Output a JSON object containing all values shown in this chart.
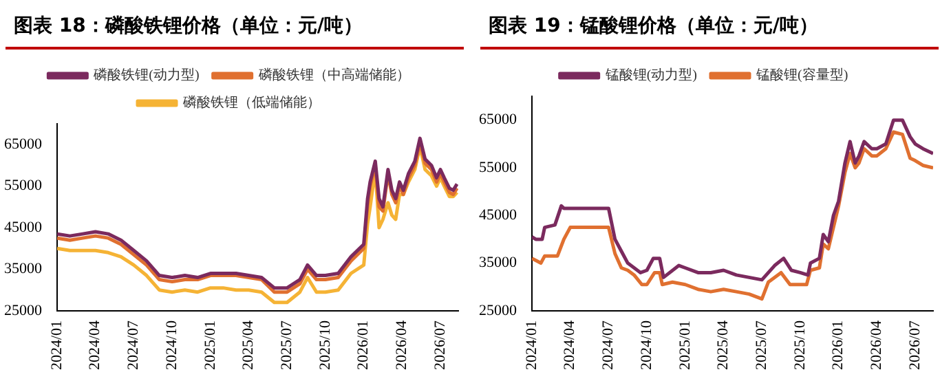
{
  "chart_data": [
    {
      "type": "line",
      "title": "图表 18：磷酸铁锂价格（单位：元/吨）",
      "legend": "top",
      "x": [
        "2024-01-01",
        "2024-02-01",
        "2024-03-01",
        "2024-04-01",
        "2024-05-01",
        "2024-06-01",
        "2024-07-01",
        "2024-08-01",
        "2024-09-01",
        "2024-10-01",
        "2024-11-01",
        "2024-12-01",
        "2025-01-01",
        "2025-02-01",
        "2025-03-01",
        "2025-04-01",
        "2025-05-01",
        "2025-06-01",
        "2025-07-01",
        "2025-08-01",
        "2025-08-19",
        "2025-09-10",
        "2025-10-01",
        "2025-11-01",
        "2025-12-01",
        "2026-01-01",
        "2026-01-10",
        "2026-01-16",
        "2026-01-28",
        "2026-02-07",
        "2026-02-16",
        "2026-02-28",
        "2026-03-07",
        "2026-03-16",
        "2026-03-25",
        "2026-04-04",
        "2026-04-16",
        "2026-05-01",
        "2026-05-13",
        "2026-05-25",
        "2026-06-10",
        "2026-06-22",
        "2026-07-01",
        "2026-07-10",
        "2026-07-22",
        "2026-08-01",
        "2026-08-10"
      ],
      "series": [
        {
          "name": "磷酸铁锂(动力型)",
          "color": "#7b2a5e",
          "values": [
            43500,
            43000,
            43500,
            44000,
            43500,
            42000,
            39500,
            37000,
            33500,
            33000,
            33500,
            33000,
            34000,
            34000,
            34000,
            33500,
            33000,
            30500,
            30500,
            32500,
            36000,
            33500,
            33500,
            34000,
            38000,
            41000,
            52000,
            56000,
            61000,
            52000,
            50000,
            59000,
            54000,
            52000,
            56000,
            54000,
            58000,
            61000,
            66500,
            61500,
            60000,
            57000,
            59000,
            57000,
            54500,
            54000,
            55500
          ]
        },
        {
          "name": "磷酸铁锂（中高端储能）",
          "color": "#e07030",
          "values": [
            42500,
            42000,
            42500,
            43000,
            42500,
            41000,
            38500,
            36000,
            32500,
            32000,
            32500,
            32500,
            33500,
            33500,
            33500,
            33000,
            32500,
            29500,
            29500,
            31500,
            35000,
            32500,
            32500,
            33000,
            37000,
            40000,
            50500,
            55000,
            60000,
            50000,
            49000,
            58000,
            53000,
            51000,
            55000,
            53000,
            57000,
            60000,
            65500,
            60500,
            59000,
            56000,
            58000,
            56000,
            53500,
            53000,
            54500
          ]
        },
        {
          "name": "磷酸铁锂（低端储能）",
          "color": "#f5b335",
          "values": [
            40000,
            39500,
            39500,
            39500,
            39000,
            38000,
            36000,
            33500,
            30000,
            29500,
            30000,
            29500,
            30500,
            30500,
            30000,
            30000,
            29500,
            27000,
            27000,
            29500,
            33000,
            29500,
            29500,
            30000,
            34000,
            36000,
            46000,
            50000,
            59000,
            45000,
            47000,
            51000,
            48000,
            47000,
            53000,
            53000,
            56000,
            59000,
            64500,
            59000,
            57500,
            55000,
            57000,
            55000,
            52500,
            52500,
            53500
          ]
        }
      ],
      "xlim": [
        "2024-01-01",
        "2026-08-13"
      ],
      "xticks": [
        {
          "value": "2024-01",
          "label": "2024/01"
        },
        {
          "value": "2024-04",
          "label": "2024/04"
        },
        {
          "value": "2024-07",
          "label": "2024/07"
        },
        {
          "value": "2024-10",
          "label": "2024/10"
        },
        {
          "value": "2025-01",
          "label": "2025/01"
        },
        {
          "value": "2025-04",
          "label": "2025/04"
        },
        {
          "value": "2025-07",
          "label": "2025/07"
        },
        {
          "value": "2025-10",
          "label": "2025/10"
        },
        {
          "value": "2026-01",
          "label": "2026/01"
        },
        {
          "value": "2026-04",
          "label": "2026/04"
        },
        {
          "value": "2026-07",
          "label": "2026/07"
        }
      ],
      "ylim": [
        25000,
        70000
      ],
      "yticks": [
        25000,
        35000,
        45000,
        55000,
        65000
      ]
    },
    {
      "type": "line",
      "title": "图表 19：锰酸锂价格（单位：元/吨）",
      "legend": "top",
      "series": [
        {
          "name": "锰酸锂(动力型)",
          "color": "#7b2a5e",
          "x": [
            "2024-01-01",
            "2024-01-10",
            "2024-01-25",
            "2024-02-01",
            "2024-02-25",
            "2024-03-10",
            "2024-03-16",
            "2024-07-01",
            "2024-07-16",
            "2024-08-01",
            "2024-08-16",
            "2024-09-01",
            "2024-09-16",
            "2024-10-01",
            "2024-10-16",
            "2024-11-01",
            "2024-11-10",
            "2024-12-16",
            "2025-01-01",
            "2025-02-01",
            "2025-03-01",
            "2025-04-01",
            "2025-05-01",
            "2025-06-01",
            "2025-07-01",
            "2025-08-01",
            "2025-08-22",
            "2025-09-10",
            "2025-10-01",
            "2025-10-19",
            "2025-10-25",
            "2025-11-16",
            "2025-11-25",
            "2025-12-07",
            "2025-12-19",
            "2026-01-01",
            "2026-01-16",
            "2026-01-28",
            "2026-02-10",
            "2026-02-19",
            "2026-03-01",
            "2026-03-19",
            "2026-04-01",
            "2026-04-22",
            "2026-05-10",
            "2026-06-01",
            "2026-06-19",
            "2026-07-01",
            "2026-07-19",
            "2026-08-13"
          ],
          "values": [
            40500,
            40000,
            40000,
            42500,
            43000,
            47000,
            46500,
            46500,
            40000,
            37500,
            35000,
            34000,
            33000,
            33500,
            36000,
            36000,
            32000,
            34500,
            34000,
            33000,
            33000,
            33500,
            32500,
            32000,
            31500,
            34500,
            36000,
            33500,
            33000,
            32500,
            35000,
            36000,
            41000,
            39500,
            45000,
            48000,
            56000,
            60500,
            56000,
            57500,
            60500,
            59000,
            59000,
            60000,
            65000,
            65000,
            61500,
            60000,
            59000,
            58000
          ]
        },
        {
          "name": "锰酸锂(容量型)",
          "color": "#e07030",
          "x": [
            "2024-01-01",
            "2024-01-22",
            "2024-02-01",
            "2024-03-01",
            "2024-03-16",
            "2024-04-01",
            "2024-07-01",
            "2024-07-16",
            "2024-08-01",
            "2024-08-16",
            "2024-09-01",
            "2024-09-19",
            "2024-10-01",
            "2024-10-19",
            "2024-11-01",
            "2024-11-07",
            "2024-12-01",
            "2025-01-01",
            "2025-02-01",
            "2025-03-01",
            "2025-04-01",
            "2025-05-01",
            "2025-06-01",
            "2025-07-01",
            "2025-07-16",
            "2025-08-16",
            "2025-09-07",
            "2025-10-16",
            "2025-10-25",
            "2025-11-16",
            "2025-11-25",
            "2025-12-07",
            "2026-01-01",
            "2026-01-16",
            "2026-01-28",
            "2026-02-10",
            "2026-02-19",
            "2026-03-01",
            "2026-03-19",
            "2026-04-01",
            "2026-04-22",
            "2026-05-10",
            "2026-06-01",
            "2026-06-19",
            "2026-07-01",
            "2026-07-19",
            "2026-08-13"
          ],
          "values": [
            36000,
            35000,
            36500,
            36500,
            40000,
            42500,
            42500,
            37000,
            34000,
            33500,
            32500,
            30500,
            30500,
            33000,
            33000,
            30500,
            31000,
            30500,
            29500,
            29000,
            29500,
            29000,
            28500,
            27500,
            31000,
            33000,
            30500,
            30500,
            33500,
            34000,
            39000,
            38000,
            47000,
            54000,
            58000,
            55000,
            56000,
            59000,
            57500,
            57500,
            59000,
            62500,
            62000,
            57000,
            56500,
            55500,
            55000
          ]
        }
      ],
      "xlim": [
        "2024-01-01",
        "2026-08-13"
      ],
      "xticks": [
        {
          "value": "2024-01",
          "label": "2024/01"
        },
        {
          "value": "2024-04",
          "label": "2024/04"
        },
        {
          "value": "2024-07",
          "label": "2024/07"
        },
        {
          "value": "2024-10",
          "label": "2024/10"
        },
        {
          "value": "2025-01",
          "label": "2025/01"
        },
        {
          "value": "2025-04",
          "label": "2025/04"
        },
        {
          "value": "2025-07",
          "label": "2025/07"
        },
        {
          "value": "2025-10",
          "label": "2025/10"
        },
        {
          "value": "2026-01",
          "label": "2026/01"
        },
        {
          "value": "2026-04",
          "label": "2026/04"
        },
        {
          "value": "2026-07",
          "label": "2026/07"
        }
      ],
      "ylim": [
        25000,
        70000
      ],
      "yticks": [
        25000,
        35000,
        45000,
        55000,
        65000
      ]
    }
  ]
}
